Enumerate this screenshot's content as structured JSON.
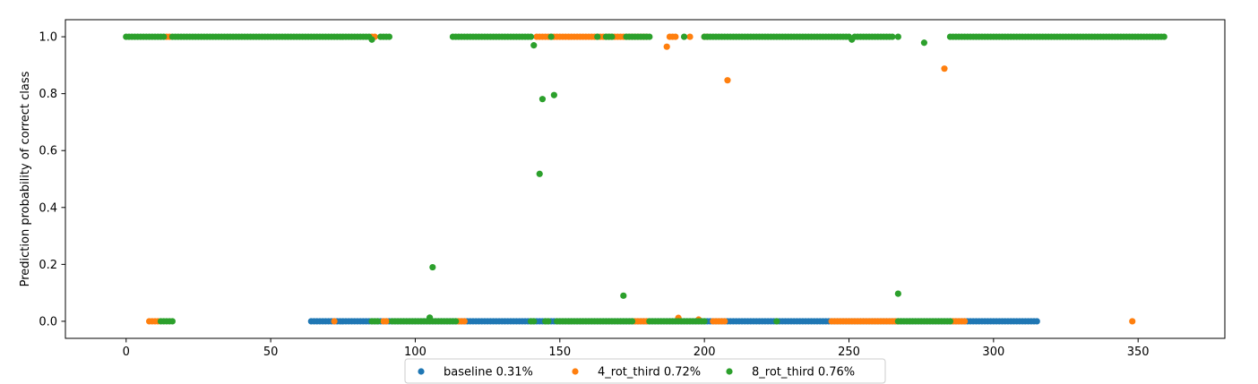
{
  "chart_data": {
    "type": "scatter",
    "title": "",
    "xlabel": "",
    "ylabel": "Prediction probability of correct class",
    "xlim": [
      -21,
      380
    ],
    "ylim": [
      -0.06,
      1.06
    ],
    "xticks": [
      0,
      50,
      100,
      150,
      200,
      250,
      300,
      350
    ],
    "yticks": [
      0.0,
      0.2,
      0.4,
      0.6,
      0.8,
      1.0
    ],
    "xtick_labels": [
      "0",
      "50",
      "100",
      "150",
      "200",
      "250",
      "300",
      "350"
    ],
    "ytick_labels": [
      "0.0",
      "0.2",
      "0.4",
      "0.6",
      "0.8",
      "1.0"
    ],
    "grid": false,
    "legend_position": "bottom-center",
    "series": [
      {
        "name": "baseline 0.31%",
        "color": "#1f77b4",
        "segments": [
          {
            "from": 64,
            "to": 315,
            "y": 0.0
          }
        ],
        "points": []
      },
      {
        "name": "4_rot_third 0.72%",
        "color": "#ff7f0e",
        "segments": [
          {
            "from": 14,
            "to": 15,
            "y": 1.0
          },
          {
            "from": 85,
            "to": 86,
            "y": 1.0
          },
          {
            "from": 142,
            "to": 180,
            "y": 1.0
          },
          {
            "from": 188,
            "to": 190,
            "y": 1.0
          },
          {
            "from": 195,
            "to": 195,
            "y": 1.0
          },
          {
            "from": 200,
            "to": 201,
            "y": 1.0
          },
          {
            "from": 8,
            "to": 11,
            "y": 0.0
          },
          {
            "from": 72,
            "to": 72,
            "y": 0.0
          },
          {
            "from": 89,
            "to": 90,
            "y": 0.0
          },
          {
            "from": 115,
            "to": 117,
            "y": 0.0
          },
          {
            "from": 176,
            "to": 180,
            "y": 0.0
          },
          {
            "from": 203,
            "to": 207,
            "y": 0.0
          },
          {
            "from": 244,
            "to": 267,
            "y": 0.0
          },
          {
            "from": 286,
            "to": 290,
            "y": 0.0
          }
        ],
        "points": [
          [
            187,
            0.965
          ],
          [
            208,
            0.847
          ],
          [
            283,
            0.888
          ],
          [
            191,
            0.012
          ],
          [
            198,
            0.006
          ],
          [
            348,
            0.0
          ]
        ]
      },
      {
        "name": "8_rot_third 0.76%",
        "color": "#2ca02c",
        "segments": [
          {
            "from": 0,
            "to": 13,
            "y": 1.0
          },
          {
            "from": 16,
            "to": 84,
            "y": 1.0
          },
          {
            "from": 88,
            "to": 91,
            "y": 1.0
          },
          {
            "from": 113,
            "to": 140,
            "y": 1.0
          },
          {
            "from": 163,
            "to": 163,
            "y": 1.0
          },
          {
            "from": 166,
            "to": 168,
            "y": 1.0
          },
          {
            "from": 173,
            "to": 181,
            "y": 1.0
          },
          {
            "from": 200,
            "to": 250,
            "y": 1.0
          },
          {
            "from": 252,
            "to": 265,
            "y": 1.0
          },
          {
            "from": 285,
            "to": 359,
            "y": 1.0
          },
          {
            "from": 12,
            "to": 16,
            "y": 0.0
          },
          {
            "from": 85,
            "to": 87,
            "y": 0.0
          },
          {
            "from": 92,
            "to": 114,
            "y": 0.0
          },
          {
            "from": 140,
            "to": 141,
            "y": 0.0
          },
          {
            "from": 145,
            "to": 146,
            "y": 0.0
          },
          {
            "from": 149,
            "to": 175,
            "y": 0.0
          },
          {
            "from": 181,
            "to": 200,
            "y": 0.0
          },
          {
            "from": 225,
            "to": 225,
            "y": 0.0
          },
          {
            "from": 267,
            "to": 285,
            "y": 0.0
          }
        ],
        "points": [
          [
            85,
            0.99
          ],
          [
            141,
            0.97
          ],
          [
            143,
            0.518
          ],
          [
            144,
            0.781
          ],
          [
            147,
            1.0
          ],
          [
            148,
            0.795
          ],
          [
            193,
            1.0
          ],
          [
            251,
            0.99
          ],
          [
            267,
            1.0
          ],
          [
            276,
            0.979
          ],
          [
            105,
            0.013
          ],
          [
            106,
            0.19
          ],
          [
            172,
            0.09
          ],
          [
            267,
            0.097
          ]
        ]
      }
    ]
  }
}
